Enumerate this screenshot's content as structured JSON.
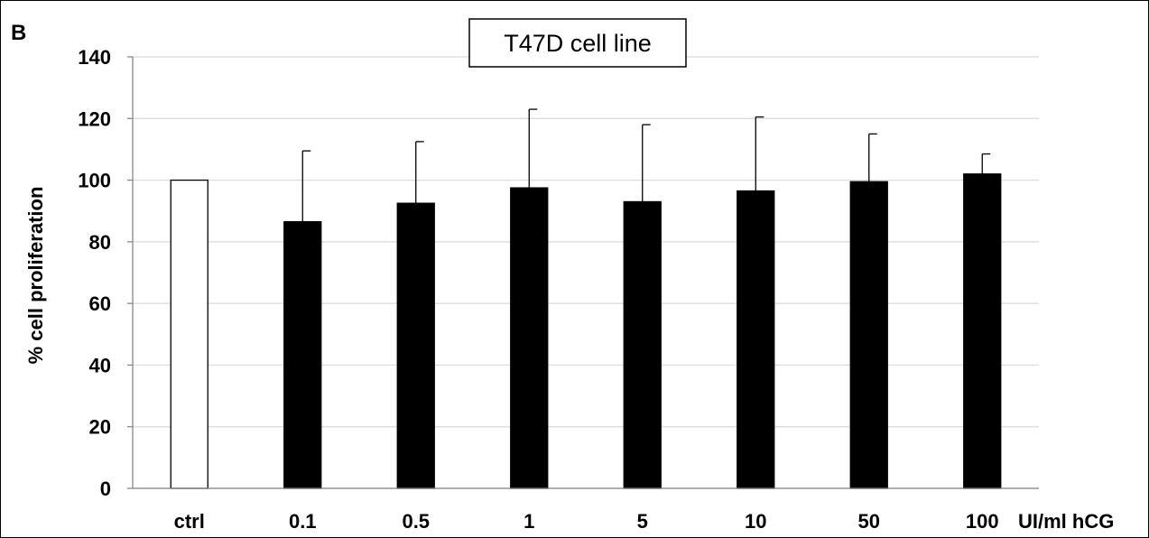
{
  "panel_label": "B",
  "colors": {
    "control_bar": "#ffffff",
    "treated_bar": "#000000",
    "gridline": "#d9d9d9",
    "axis": "#7f7f7f"
  },
  "chart_data": {
    "type": "bar",
    "title": "T47D cell line",
    "xlabel": "UI/ml hCG",
    "ylabel": "% cell proliferation",
    "ylim": [
      0,
      140
    ],
    "yticks": [
      0,
      20,
      40,
      60,
      80,
      100,
      120,
      140
    ],
    "grid": true,
    "categories": [
      "ctrl",
      "0.1",
      "0.5",
      "1",
      "5",
      "10",
      "50",
      "100"
    ],
    "values": [
      100,
      86.5,
      92.5,
      97.5,
      93,
      96.5,
      99.5,
      102
    ],
    "error_upper": [
      0,
      23,
      20,
      25.5,
      25,
      24,
      15.5,
      6.5
    ],
    "bar_fill": [
      "white",
      "black",
      "black",
      "black",
      "black",
      "black",
      "black",
      "black"
    ]
  }
}
